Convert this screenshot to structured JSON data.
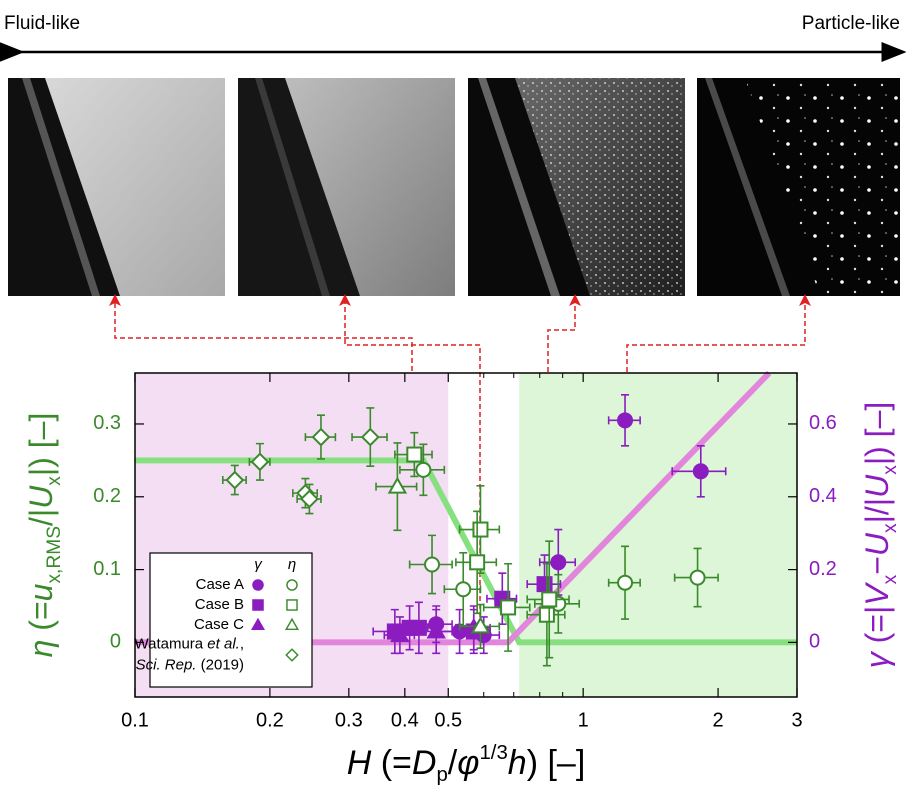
{
  "header": {
    "left": "Fluid-like",
    "right": "Particle-like"
  },
  "chart_data": {
    "type": "scatter",
    "xscale": "log",
    "xlim": [
      0.1,
      3
    ],
    "xticks": [
      0.1,
      0.2,
      0.3,
      0.4,
      0.5,
      1,
      2,
      3
    ],
    "xminor": [
      0.6,
      0.7,
      0.8,
      0.9
    ],
    "ylim": [
      -0.075,
      0.37
    ],
    "yticks": [
      0,
      0.1,
      0.2,
      0.3
    ],
    "y2lim": [
      -0.15,
      0.74
    ],
    "y2ticks": [
      0,
      0.2,
      0.4,
      0.6
    ],
    "x_label": [
      "H",
      " (=",
      "D",
      "p",
      "/",
      "φ",
      "1/3",
      "h",
      ") [–]"
    ],
    "y_label": [
      "η",
      " (=",
      "u",
      "x,RMS",
      "/|",
      "U",
      "x",
      "|) [–]"
    ],
    "y2_label": [
      "γ",
      " (=|",
      "V",
      "x",
      "−",
      "U",
      "x",
      "|/|",
      "U",
      "x",
      "|) [–]"
    ],
    "y_color": "#3a8a2c",
    "y2_color": "#8a1cc0",
    "regions": [
      {
        "x": [
          0.1,
          0.5
        ],
        "color": "#f3def3"
      },
      {
        "x": [
          0.72,
          3
        ],
        "color": "#dcf6d7"
      }
    ],
    "fits": [
      {
        "axis": "y",
        "color": "#86e07f",
        "x": [
          0.1,
          0.44,
          0.72,
          3
        ],
        "values": [
          0.25,
          0.25,
          0,
          0
        ]
      },
      {
        "axis": "y2",
        "color": "#e286dc",
        "x": [
          0.1,
          0.68,
          2.6
        ],
        "values": [
          0,
          0,
          0.74
        ]
      }
    ],
    "legend": {
      "columns": [
        "γ",
        "η"
      ],
      "rows": [
        {
          "lines": [
            [
              "Case A"
            ]
          ],
          "italic": [
            [
              false
            ]
          ]
        },
        {
          "lines": [
            [
              "Case B"
            ]
          ],
          "italic": [
            [
              false
            ]
          ]
        },
        {
          "lines": [
            [
              "Case C"
            ]
          ],
          "italic": [
            [
              false
            ]
          ]
        },
        {
          "lines": [
            [
              "Watamura ",
              "et al.",
              ","
            ],
            [
              "Sci. Rep.",
              " (2019)"
            ]
          ],
          "italic": [
            [
              false,
              true,
              false
            ],
            [
              true,
              false
            ]
          ]
        }
      ]
    },
    "series": [
      {
        "row": 0,
        "marker": "circle",
        "filled": true,
        "color": "#8a1cc0",
        "axis": "y2",
        "x": [
          1.24,
          1.83,
          0.88,
          0.47,
          0.53,
          0.6
        ],
        "values": [
          0.61,
          0.47,
          0.22,
          0.05,
          0.03,
          0.02
        ],
        "xerr": [
          0.1,
          0.25,
          0.08,
          0.04,
          0.05,
          0.05
        ],
        "yerr": [
          0.07,
          0.07,
          0.09,
          0.05,
          0.06,
          0.05
        ]
      },
      {
        "row": 1,
        "marker": "square",
        "filled": true,
        "color": "#8a1cc0",
        "axis": "y2",
        "x": [
          0.66,
          0.82,
          0.41,
          0.43,
          0.38,
          0.57
        ],
        "values": [
          0.12,
          0.16,
          0.04,
          0.04,
          0.03,
          0.03
        ],
        "xerr": [
          0.05,
          0.07,
          0.04,
          0.04,
          0.04,
          0.05
        ],
        "yerr": [
          0.07,
          0.08,
          0.06,
          0.07,
          0.06,
          0.06
        ]
      },
      {
        "row": 2,
        "marker": "triangle",
        "filled": true,
        "color": "#8a1cc0",
        "axis": "y2",
        "x": [
          0.39,
          0.47,
          0.57
        ],
        "values": [
          0.02,
          0.03,
          0.04
        ],
        "xerr": [
          0.03,
          0.04,
          0.05
        ],
        "yerr": [
          0.05,
          0.06,
          0.06
        ]
      },
      {
        "row": 0,
        "marker": "circle",
        "filled": false,
        "color": "#3a8a2c",
        "axis": "y",
        "x": [
          0.44,
          0.46,
          0.54,
          0.88,
          1.24,
          1.8
        ],
        "values": [
          0.237,
          0.107,
          0.073,
          0.053,
          0.082,
          0.089
        ],
        "xerr": [
          0.05,
          0.05,
          0.05,
          0.1,
          0.1,
          0.2
        ],
        "yerr": [
          0.035,
          0.04,
          0.05,
          0.04,
          0.05,
          0.04
        ]
      },
      {
        "row": 1,
        "marker": "square",
        "filled": false,
        "color": "#3a8a2c",
        "axis": "y",
        "x": [
          0.42,
          0.59,
          0.58,
          0.68,
          0.83,
          0.84
        ],
        "values": [
          0.258,
          0.155,
          0.11,
          0.048,
          0.038,
          0.059
        ],
        "xerr": [
          0.04,
          0.06,
          0.06,
          0.08,
          0.08,
          0.09
        ],
        "yerr": [
          0.03,
          0.06,
          0.07,
          0.06,
          0.07,
          0.08
        ]
      },
      {
        "row": 2,
        "marker": "triangle",
        "filled": false,
        "color": "#3a8a2c",
        "axis": "y",
        "x": [
          0.385,
          0.59
        ],
        "values": [
          0.214,
          0.022
        ],
        "xerr": [
          0.04,
          0.06
        ],
        "yerr": [
          0.06,
          0.03
        ]
      },
      {
        "row": 3,
        "marker": "diamond",
        "filled": false,
        "color": "#3a8a2c",
        "axis": "y",
        "x": [
          0.167,
          0.19,
          0.24,
          0.245,
          0.26,
          0.335
        ],
        "values": [
          0.223,
          0.248,
          0.205,
          0.197,
          0.282,
          0.282
        ],
        "xerr": [
          0.01,
          0.01,
          0.015,
          0.015,
          0.02,
          0.03
        ],
        "yerr": [
          0.02,
          0.025,
          0.02,
          0.02,
          0.03,
          0.04
        ]
      }
    ]
  }
}
